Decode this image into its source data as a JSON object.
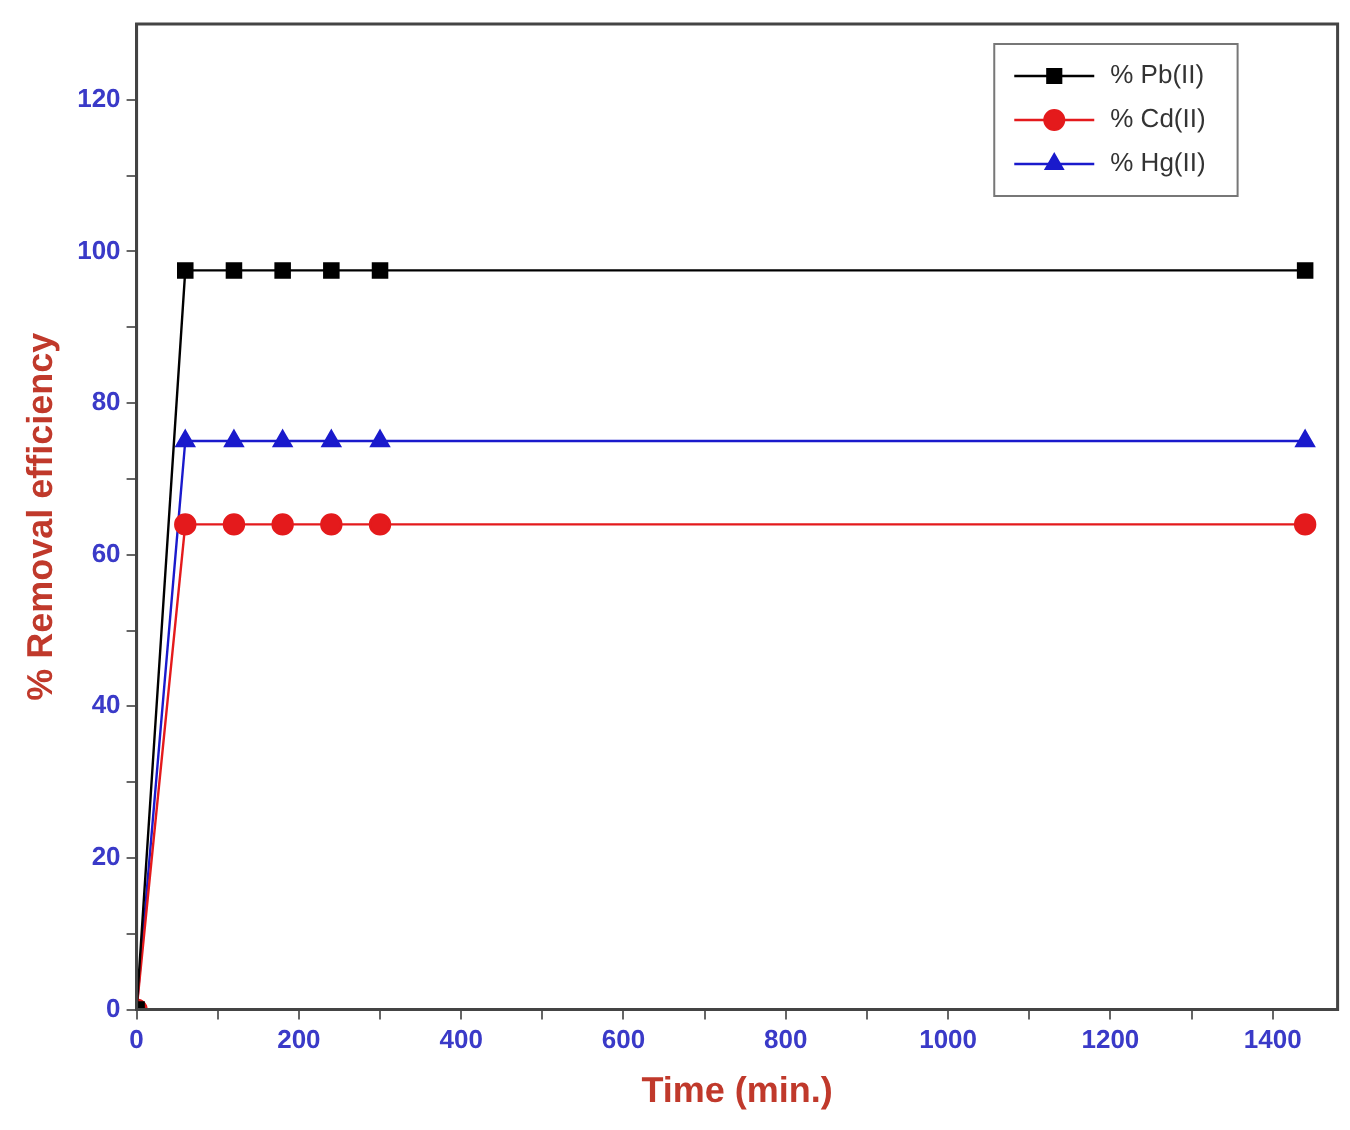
{
  "chart_data": {
    "type": "line",
    "xlabel": "Time (min.)",
    "ylabel": "% Removal efficiency",
    "xlim": [
      0,
      1480
    ],
    "ylim": [
      0,
      130
    ],
    "xticks": [
      0,
      {
        "value": 100,
        "label": null
      },
      200,
      {
        "value": 300,
        "label": null
      },
      400,
      {
        "value": 500,
        "label": null
      },
      600,
      {
        "value": 700,
        "label": null
      },
      800,
      {
        "value": 900,
        "label": null
      },
      1000,
      {
        "value": 1100,
        "label": null
      },
      1200,
      {
        "value": 1300,
        "label": null
      },
      1400
    ],
    "yticks": [
      0,
      {
        "value": 10,
        "label": null
      },
      20,
      {
        "value": 30,
        "label": null
      },
      40,
      {
        "value": 50,
        "label": null
      },
      60,
      {
        "value": 70,
        "label": null
      },
      80,
      {
        "value": 90,
        "label": null
      },
      100,
      {
        "value": 110,
        "label": null
      },
      120
    ],
    "x": [
      0,
      60,
      120,
      180,
      240,
      300,
      1440
    ],
    "series": [
      {
        "name": "% Pb(II)",
        "color": "#000000",
        "marker": "square",
        "values": [
          0,
          97.5,
          97.5,
          97.5,
          97.5,
          97.5,
          97.5
        ]
      },
      {
        "name": "% Cd(II)",
        "color": "#e41a1c",
        "marker": "circle",
        "values": [
          0,
          64,
          64,
          64,
          64,
          64,
          64
        ]
      },
      {
        "name": "% Hg(II)",
        "color": "#1a1acc",
        "marker": "triangle",
        "values": [
          0,
          75,
          75,
          75,
          75,
          75,
          75
        ]
      }
    ],
    "grid": false,
    "legend": "top right",
    "line_style": "solid"
  }
}
